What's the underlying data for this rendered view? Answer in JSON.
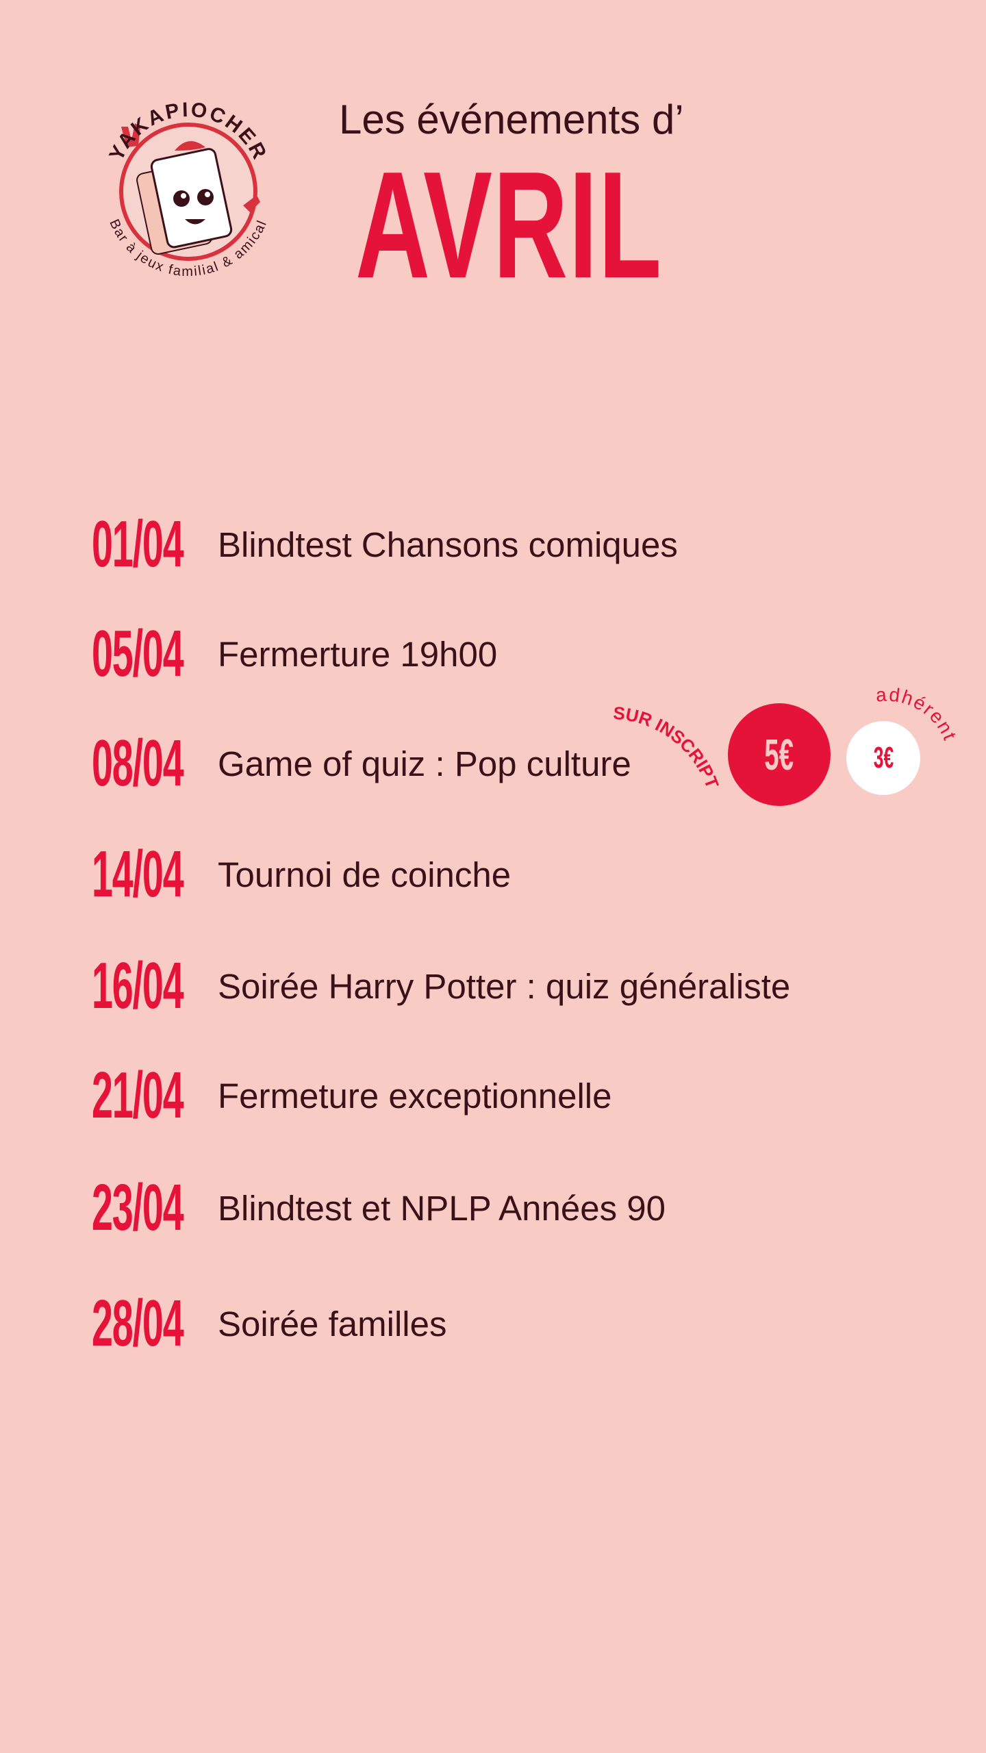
{
  "brand": {
    "name": "YAKAPIOCHER",
    "tagline": "Bar à jeux familial & amical"
  },
  "header": {
    "subtitle": "Les événements d’",
    "month": "AVRIL"
  },
  "events": [
    {
      "date": "01/04",
      "title": "Blindtest Chansons comiques"
    },
    {
      "date": "05/04",
      "title": "Fermerture 19h00"
    },
    {
      "date": "08/04",
      "title": "Game of quiz : Pop culture"
    },
    {
      "date": "14/04",
      "title": "Tournoi de coinche"
    },
    {
      "date": "16/04",
      "title": "Soirée Harry Potter : quiz généraliste"
    },
    {
      "date": "21/04",
      "title": "Fermeture exceptionnelle"
    },
    {
      "date": "23/04",
      "title": "Blindtest et NPLP Années 90"
    },
    {
      "date": "28/04",
      "title": "Soirée familles"
    }
  ],
  "pricing": {
    "note": "SUR INSCRIPTION",
    "price": "5€",
    "member_price": "3€",
    "member_label": "adhérent"
  },
  "colors": {
    "background": "#f9cbc5",
    "accent": "#e5133a",
    "text": "#3a1019"
  }
}
